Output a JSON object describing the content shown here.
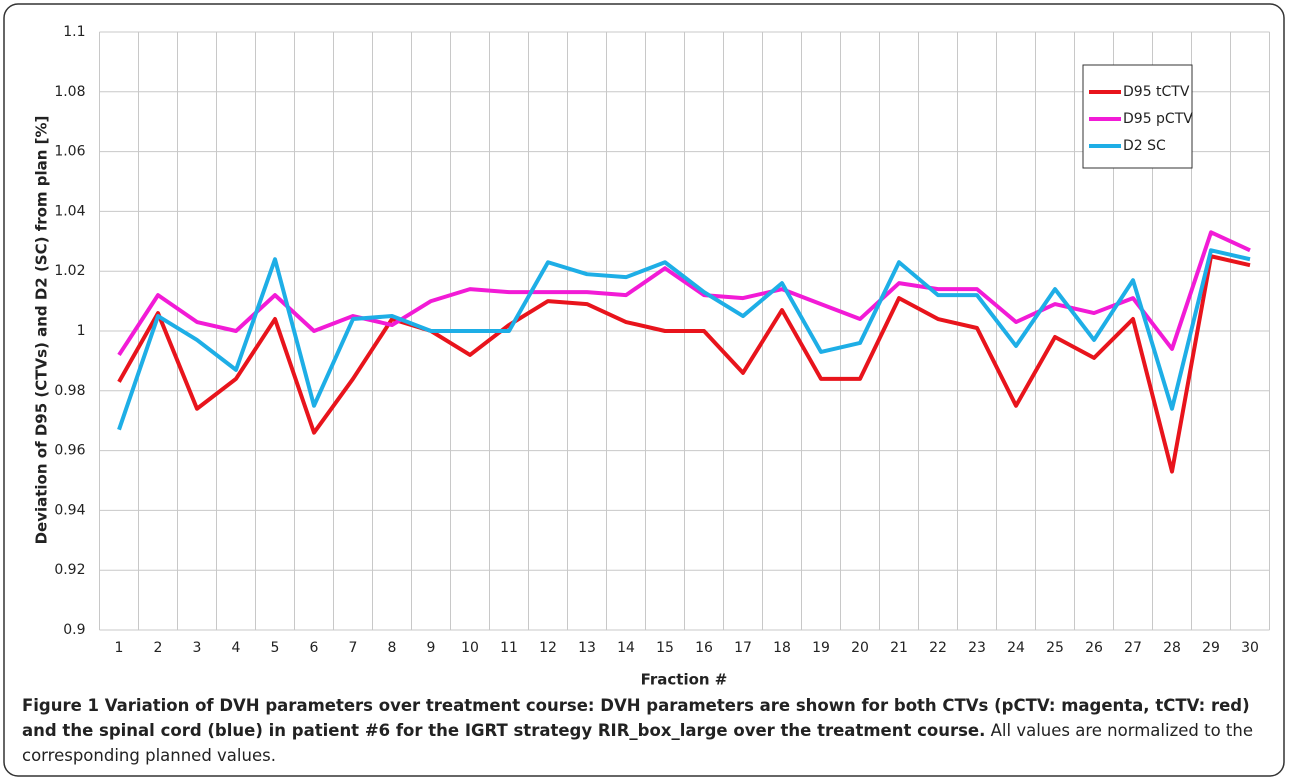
{
  "chart_data": {
    "type": "line",
    "y_label": "Deviation of D95 (CTVs) and D2 (SC) from plan [%]",
    "x_label": "Fraction #",
    "categories": [
      "1",
      "2",
      "3",
      "4",
      "5",
      "6",
      "7",
      "8",
      "9",
      "10",
      "11",
      "12",
      "13",
      "14",
      "15",
      "16",
      "17",
      "18",
      "19",
      "20",
      "21",
      "22",
      "23",
      "24",
      "25",
      "26",
      "27",
      "28",
      "29",
      "30"
    ],
    "series": [
      {
        "name": "D95 tCTV",
        "color": "#e8141c",
        "values": [
          0.983,
          1.006,
          0.974,
          0.984,
          1.004,
          0.966,
          0.984,
          1.004,
          1.0,
          0.992,
          1.002,
          1.01,
          1.009,
          1.003,
          1.0,
          1.0,
          0.986,
          1.007,
          0.984,
          0.984,
          1.011,
          1.004,
          1.001,
          0.975,
          0.998,
          0.991,
          1.004,
          0.953,
          1.025,
          1.022
        ]
      },
      {
        "name": "D95 pCTV",
        "color": "#f21bd6",
        "values": [
          0.992,
          1.012,
          1.003,
          1.0,
          1.012,
          1.0,
          1.005,
          1.002,
          1.01,
          1.014,
          1.013,
          1.013,
          1.013,
          1.012,
          1.021,
          1.012,
          1.011,
          1.014,
          1.009,
          1.004,
          1.016,
          1.014,
          1.014,
          1.003,
          1.009,
          1.006,
          1.011,
          0.994,
          1.033,
          1.027
        ]
      },
      {
        "name": "D2 SC",
        "color": "#1eaee6",
        "values": [
          0.967,
          1.005,
          0.997,
          0.987,
          1.024,
          0.975,
          1.004,
          1.005,
          1.0,
          1.0,
          1.0,
          1.023,
          1.019,
          1.018,
          1.023,
          1.013,
          1.005,
          1.016,
          0.993,
          0.996,
          1.023,
          1.012,
          1.012,
          0.995,
          1.014,
          0.997,
          1.017,
          0.974,
          1.027,
          1.024
        ]
      }
    ],
    "ylim": [
      0.9,
      1.1
    ],
    "yticks": [
      0.9,
      0.92,
      0.94,
      0.96,
      0.98,
      1,
      1.02,
      1.04,
      1.06,
      1.08,
      1.1
    ],
    "grid": true,
    "legend": "upper right"
  },
  "caption": {
    "label": "Figure 1 Variation of DVH parameters over treatment course: DVH parameters are shown for both CTVs (pCTV: magenta, tCTV: red) and the spinal cord (blue) in patient #6 for the IGRT strategy RIR_box_large over the treatment course.",
    "text": "All values are normalized to the corresponding planned values."
  }
}
